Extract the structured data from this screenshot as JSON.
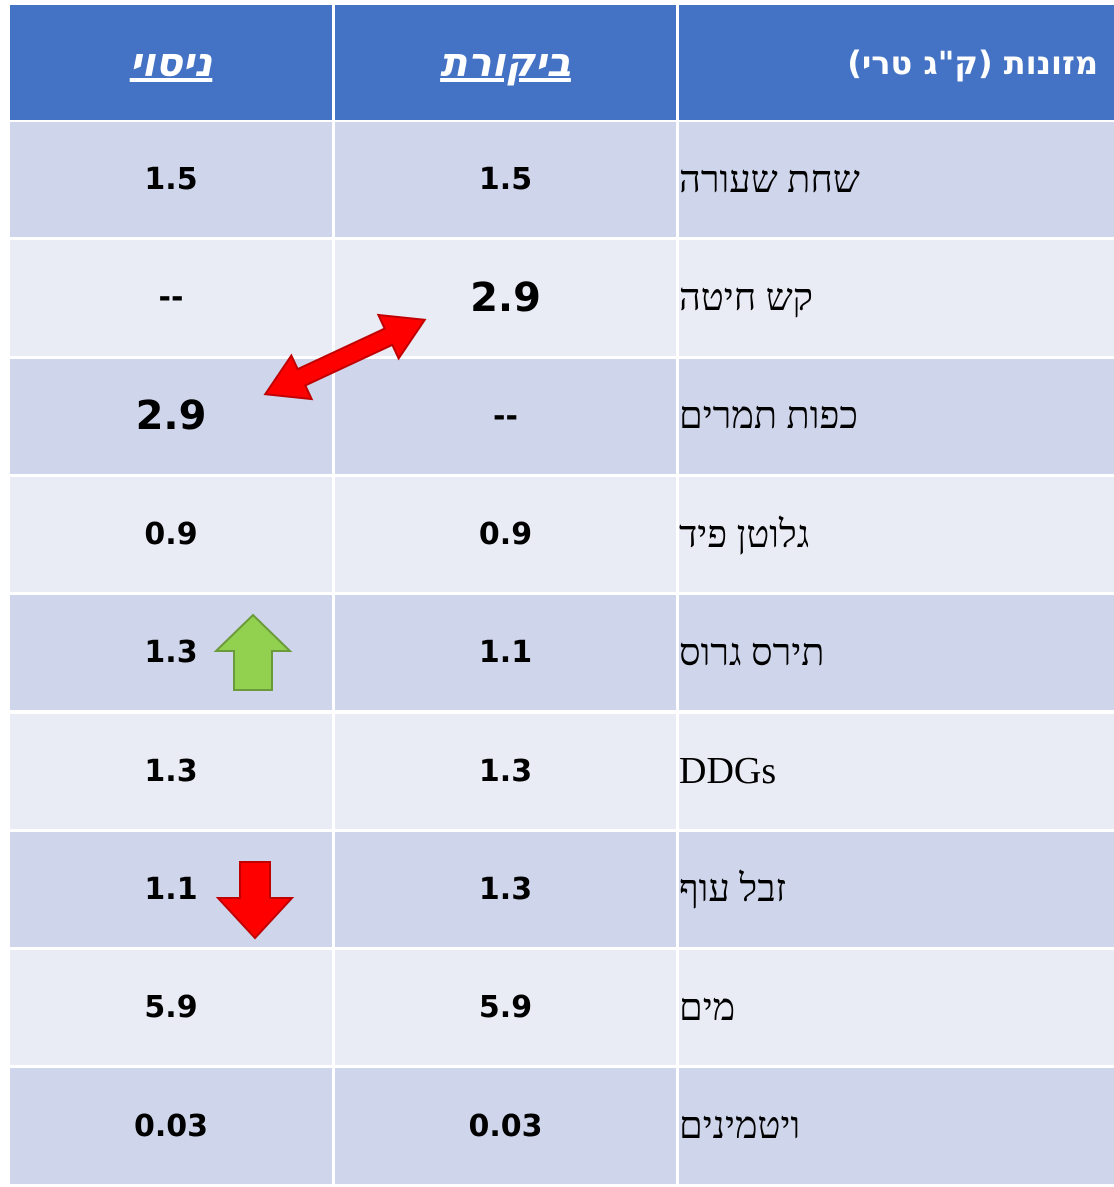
{
  "table": {
    "header": [
      "מזונות (ק\"ג טרי)",
      "ביקורת",
      "ניסוי"
    ],
    "rows": [
      [
        "שחת שעורה",
        "1.5",
        "1.5"
      ],
      [
        "קש חיטה",
        "2.9",
        "--"
      ],
      [
        "כפות תמרים",
        "--",
        "2.9"
      ],
      [
        "גלוטן פיד",
        "0.9",
        "0.9"
      ],
      [
        "תירס גרוס",
        "1.1",
        "1.3"
      ],
      [
        "DDGs",
        "1.3",
        "1.3"
      ],
      [
        "זבל עוף",
        "1.3",
        "1.1"
      ],
      [
        "מים",
        "5.9",
        "5.9"
      ],
      [
        "ויטמינים",
        "0.03",
        "0.03"
      ]
    ]
  }
}
